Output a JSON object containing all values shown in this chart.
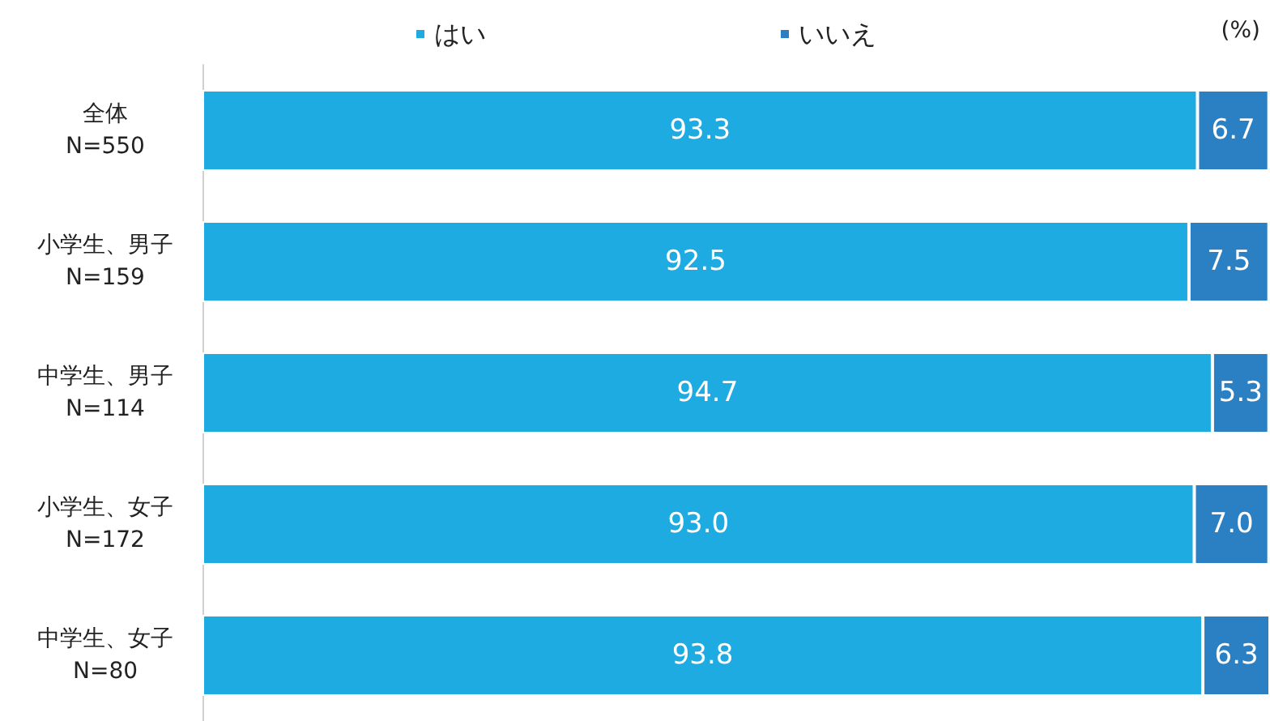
{
  "chart_data": {
    "type": "bar",
    "orientation": "horizontal",
    "stacked": true,
    "legend": "top",
    "grid": false,
    "categories": [
      "全体\nN=550",
      "小学生、男子\nN=159",
      "中学生、男子\nN=114",
      "小学生、女子\nN=172",
      "中学生、女子\nN=80"
    ],
    "series": [
      {
        "name": "はい",
        "color": "#1eabe2",
        "values": [
          93.3,
          92.5,
          94.7,
          93.0,
          93.8
        ],
        "value_labels": [
          "93.3",
          "92.5",
          "94.7",
          "93.0",
          "93.8"
        ]
      },
      {
        "name": "いいえ",
        "color": "#2b80c4",
        "values": [
          6.7,
          7.5,
          5.3,
          7.0,
          6.3
        ],
        "value_labels": [
          "6.7",
          "7.5",
          "5.3",
          "7.0",
          "6.3"
        ]
      }
    ],
    "annotations": [
      "(%)"
    ]
  }
}
